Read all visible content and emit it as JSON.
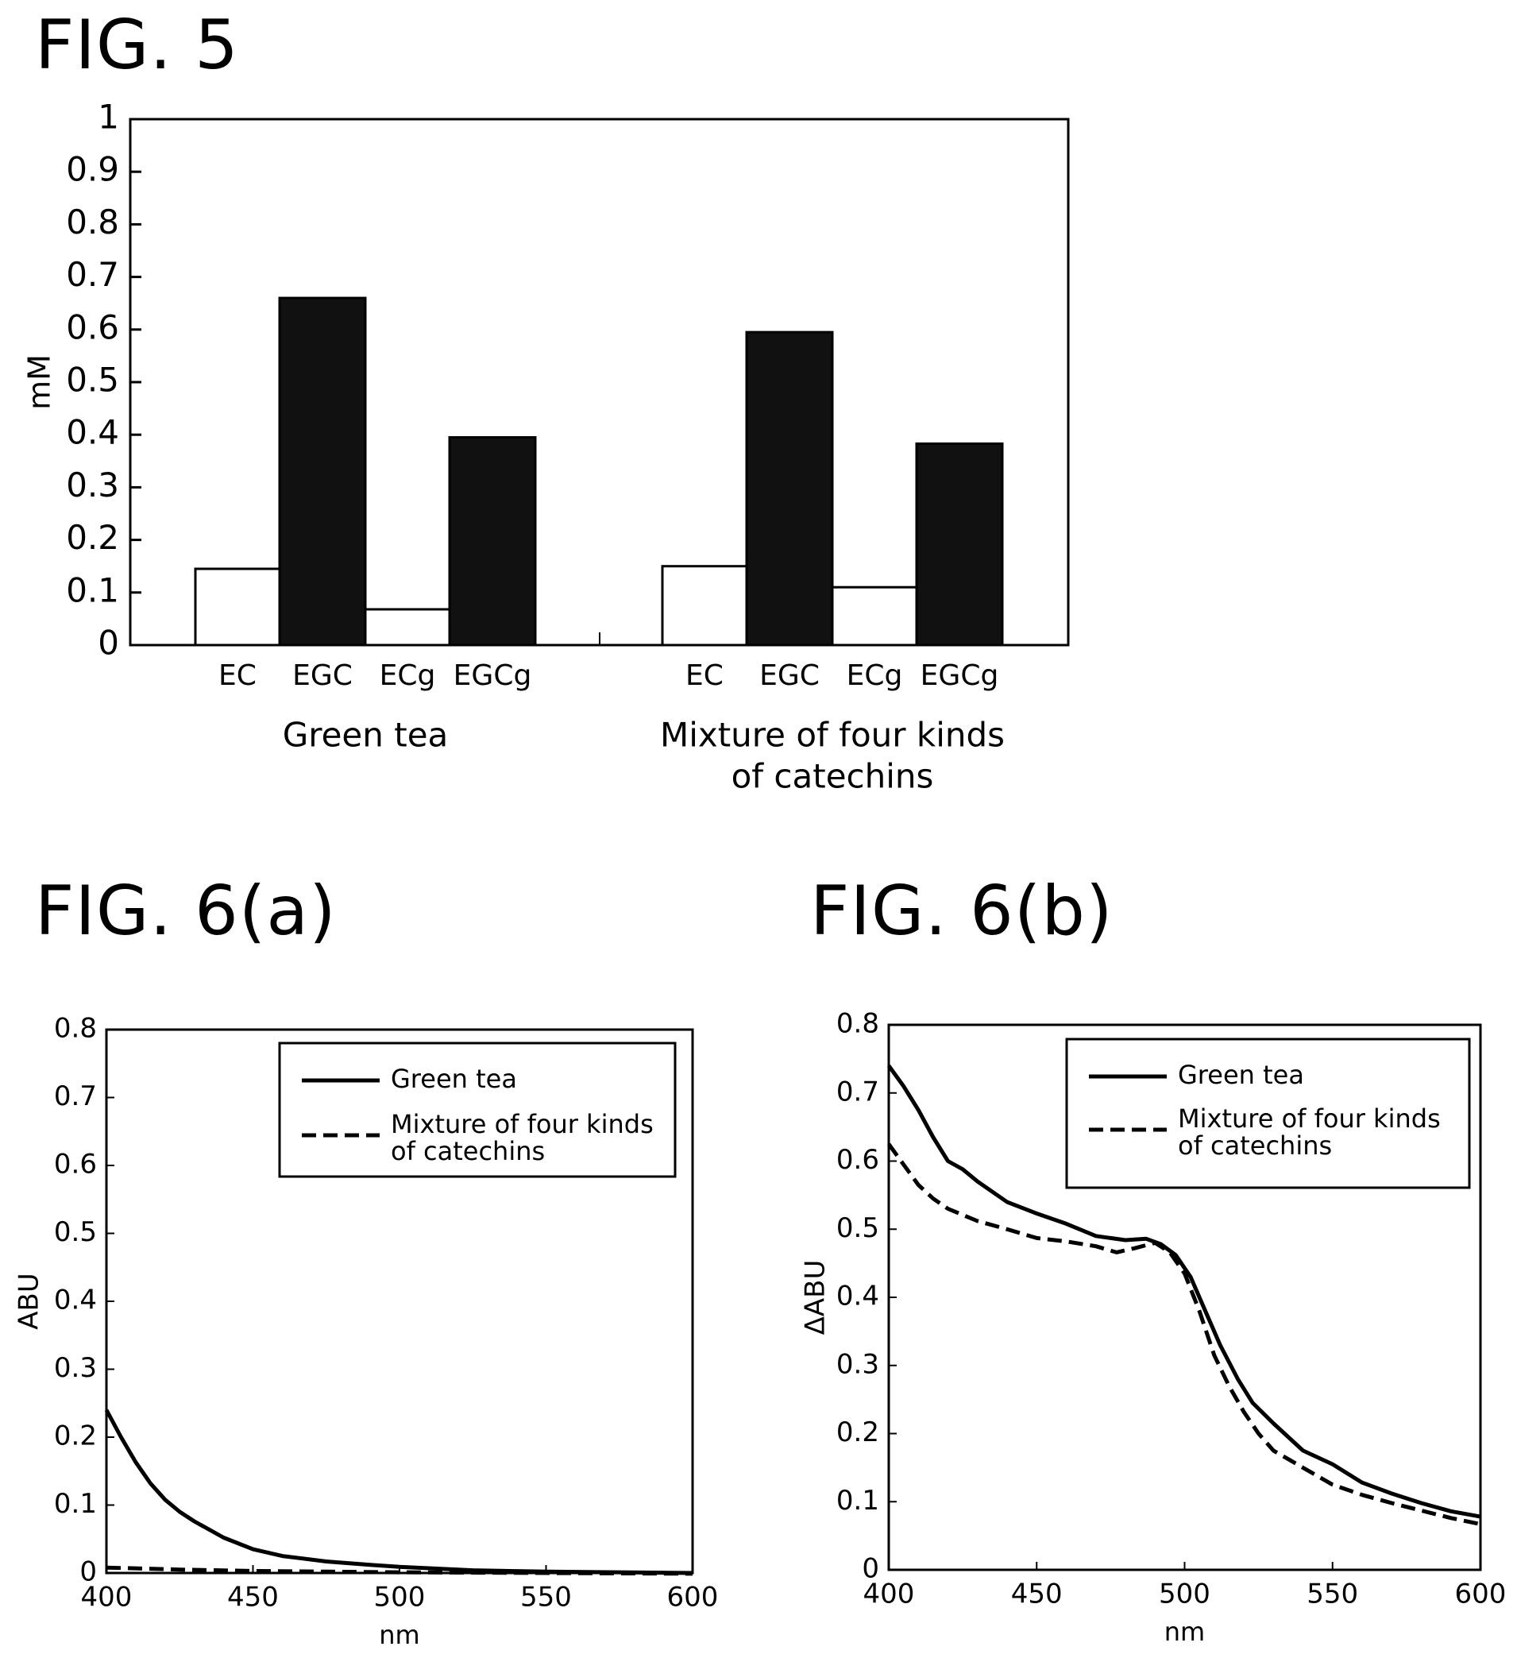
{
  "figures": {
    "fig5_title": "FIG. 5",
    "fig6a_title": "FIG. 6(a)",
    "fig6b_title": "FIG. 6(b)"
  },
  "chart_data": [
    {
      "id": "fig5",
      "type": "bar",
      "title": "",
      "ylabel": "mM",
      "xlabel": "",
      "ylim": [
        0,
        1
      ],
      "yticks": [
        "0",
        "0.1",
        "0.2",
        "0.3",
        "0.4",
        "0.5",
        "0.6",
        "0.7",
        "0.8",
        "0.9",
        "1"
      ],
      "grid": false,
      "groups": [
        {
          "label": "Green tea",
          "categories": [
            "EC",
            "EGC",
            "ECg",
            "EGCg"
          ],
          "values": [
            0.145,
            0.66,
            0.068,
            0.395
          ]
        },
        {
          "label": "Mixture of four kinds of catechins",
          "label_lines": [
            "Mixture of four kinds",
            "of catechins"
          ],
          "categories": [
            "EC",
            "EGC",
            "ECg",
            "EGCg"
          ],
          "values": [
            0.15,
            0.595,
            0.11,
            0.383
          ]
        }
      ],
      "fills": {
        "EC": "#ffffff",
        "EGC": "#111111",
        "ECg": "#ffffff",
        "EGCg": "#111111"
      }
    },
    {
      "id": "fig6a",
      "type": "line",
      "title": "",
      "xlabel": "nm",
      "ylabel": "ABU",
      "xlim": [
        400,
        600
      ],
      "ylim": [
        0,
        0.8
      ],
      "xticks": [
        "400",
        "450",
        "500",
        "550",
        "600"
      ],
      "yticks": [
        "0",
        "0.1",
        "0.2",
        "0.3",
        "0.4",
        "0.5",
        "0.6",
        "0.7",
        "0.8"
      ],
      "grid": false,
      "legend_position": "top-right",
      "series": [
        {
          "name": "Green tea",
          "style": "solid",
          "points": [
            [
              400,
              0.24
            ],
            [
              405,
              0.2
            ],
            [
              410,
              0.163
            ],
            [
              415,
              0.132
            ],
            [
              420,
              0.108
            ],
            [
              425,
              0.09
            ],
            [
              430,
              0.076
            ],
            [
              440,
              0.052
            ],
            [
              450,
              0.035
            ],
            [
              460,
              0.025
            ],
            [
              475,
              0.017
            ],
            [
              490,
              0.012
            ],
            [
              500,
              0.009
            ],
            [
              525,
              0.004
            ],
            [
              550,
              0.002
            ],
            [
              575,
              0.001
            ],
            [
              600,
              0.0
            ]
          ]
        },
        {
          "name": "Mixture of four kinds of catechins",
          "name_lines": [
            "Mixture of four kinds",
            "of catechins"
          ],
          "style": "dashed",
          "points": [
            [
              400,
              0.008
            ],
            [
              425,
              0.005
            ],
            [
              450,
              0.003
            ],
            [
              475,
              0.002
            ],
            [
              500,
              0.001
            ],
            [
              550,
              0.0
            ],
            [
              600,
              -0.001
            ]
          ]
        }
      ]
    },
    {
      "id": "fig6b",
      "type": "line",
      "title": "",
      "xlabel": "nm",
      "ylabel": "ΔABU",
      "xlim": [
        400,
        600
      ],
      "ylim": [
        0,
        0.8
      ],
      "xticks": [
        "400",
        "450",
        "500",
        "550",
        "600"
      ],
      "yticks": [
        "0",
        "0.1",
        "0.2",
        "0.3",
        "0.4",
        "0.5",
        "0.6",
        "0.7",
        "0.8"
      ],
      "grid": false,
      "legend_position": "top-right",
      "series": [
        {
          "name": "Green tea",
          "style": "solid",
          "points": [
            [
              400,
              0.74
            ],
            [
              405,
              0.71
            ],
            [
              410,
              0.675
            ],
            [
              415,
              0.635
            ],
            [
              420,
              0.6
            ],
            [
              425,
              0.588
            ],
            [
              430,
              0.57
            ],
            [
              440,
              0.54
            ],
            [
              450,
              0.523
            ],
            [
              460,
              0.508
            ],
            [
              470,
              0.49
            ],
            [
              480,
              0.484
            ],
            [
              487,
              0.486
            ],
            [
              492,
              0.478
            ],
            [
              497,
              0.462
            ],
            [
              502,
              0.43
            ],
            [
              507,
              0.38
            ],
            [
              512,
              0.33
            ],
            [
              518,
              0.28
            ],
            [
              523,
              0.245
            ],
            [
              530,
              0.215
            ],
            [
              540,
              0.175
            ],
            [
              550,
              0.155
            ],
            [
              560,
              0.128
            ],
            [
              570,
              0.112
            ],
            [
              580,
              0.098
            ],
            [
              590,
              0.086
            ],
            [
              600,
              0.078
            ]
          ]
        },
        {
          "name": "Mixture of four kinds of catechins",
          "name_lines": [
            "Mixture of four kinds",
            "of catechins"
          ],
          "style": "dashed",
          "points": [
            [
              400,
              0.625
            ],
            [
              405,
              0.595
            ],
            [
              410,
              0.565
            ],
            [
              415,
              0.545
            ],
            [
              420,
              0.53
            ],
            [
              430,
              0.512
            ],
            [
              440,
              0.5
            ],
            [
              450,
              0.487
            ],
            [
              460,
              0.482
            ],
            [
              470,
              0.475
            ],
            [
              477,
              0.466
            ],
            [
              483,
              0.472
            ],
            [
              490,
              0.48
            ],
            [
              495,
              0.466
            ],
            [
              500,
              0.435
            ],
            [
              505,
              0.38
            ],
            [
              510,
              0.315
            ],
            [
              515,
              0.27
            ],
            [
              520,
              0.232
            ],
            [
              525,
              0.2
            ],
            [
              530,
              0.175
            ],
            [
              540,
              0.15
            ],
            [
              550,
              0.125
            ],
            [
              560,
              0.11
            ],
            [
              570,
              0.098
            ],
            [
              580,
              0.087
            ],
            [
              590,
              0.076
            ],
            [
              600,
              0.067
            ]
          ]
        }
      ]
    }
  ]
}
